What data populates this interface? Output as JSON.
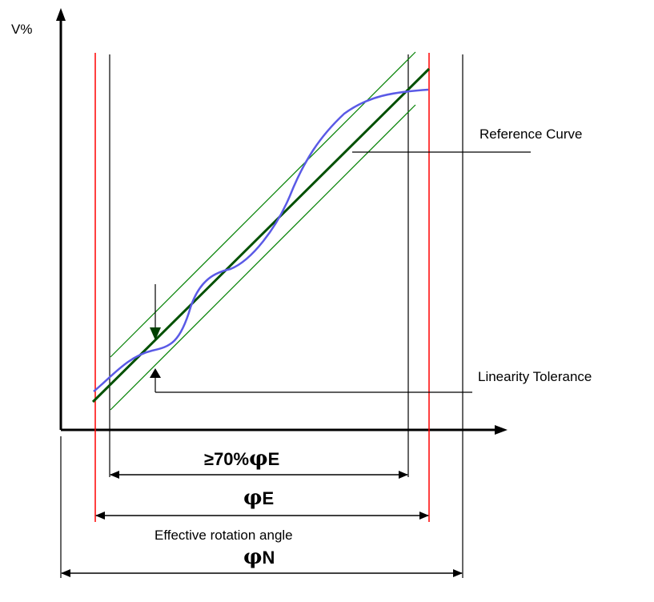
{
  "labels": {
    "y_axis": "V%",
    "reference_curve": "Reference Curve",
    "linearity_tolerance": "Linearity Tolerance",
    "seventy_percent_prefix": "≥70%",
    "seventy_percent_phi": "φ",
    "seventy_percent_suffix": "E",
    "phi_e_phi": "φ",
    "phi_e_suffix": "E",
    "effective_rotation_angle": "Effective rotation angle",
    "phi_n_phi": "φ",
    "phi_n_suffix": "N"
  },
  "colors": {
    "axis": "#000000",
    "boundary_red": "#ff0000",
    "reference_line": "#005000",
    "tolerance_band": "#008000",
    "actual_curve": "#5a5ae6",
    "tolerance_arrow": "#004000"
  }
}
